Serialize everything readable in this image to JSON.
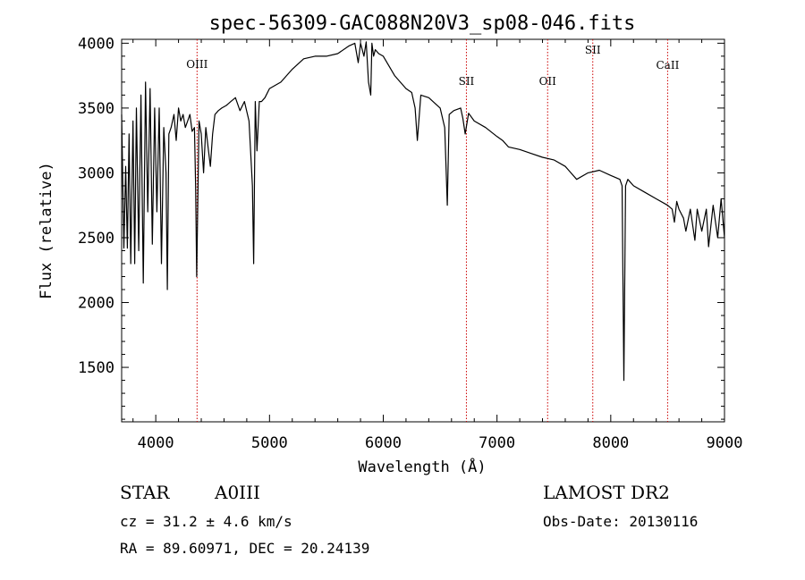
{
  "chart_data": {
    "type": "line",
    "title": "spec-56309-GAC088N20V3_sp08-046.fits",
    "xlabel": "Wavelength (Å)",
    "ylabel": "Flux (relative)",
    "xlim": [
      3700,
      9000
    ],
    "ylim": [
      1080,
      4030
    ],
    "xticks": [
      4000,
      5000,
      6000,
      7000,
      8000,
      9000
    ],
    "yticks": [
      1500,
      2000,
      2500,
      3000,
      3500,
      4000
    ],
    "reference_lines": [
      {
        "label": "OIII",
        "x": 4363
      },
      {
        "label": "SII",
        "x": 6731
      },
      {
        "label": "OII",
        "x": 7445
      },
      {
        "label": "SII",
        "x": 7842
      },
      {
        "label": "CaII",
        "x": 8500
      }
    ],
    "reference_line_color": "#cc0000",
    "series": [
      {
        "x": [
          3700,
          3720,
          3735,
          3750,
          3765,
          3780,
          3800,
          3815,
          3830,
          3850,
          3870,
          3890,
          3910,
          3930,
          3950,
          3970,
          3990,
          4010,
          4030,
          4050,
          4070,
          4090,
          4102,
          4115,
          4135,
          4160,
          4180,
          4200,
          4220,
          4240,
          4260,
          4280,
          4300,
          4320,
          4340,
          4350,
          4360,
          4380,
          4400,
          4420,
          4440,
          4460,
          4480,
          4500,
          4520,
          4550,
          4580,
          4620,
          4660,
          4700,
          4740,
          4780,
          4820,
          4850,
          4861,
          4875,
          4890,
          4910,
          4930,
          4960,
          5000,
          5100,
          5200,
          5300,
          5400,
          5500,
          5600,
          5700,
          5750,
          5780,
          5800,
          5830,
          5850,
          5870,
          5890,
          5900,
          5915,
          5930,
          5960,
          6000,
          6100,
          6200,
          6250,
          6280,
          6300,
          6330,
          6400,
          6500,
          6540,
          6563,
          6580,
          6620,
          6680,
          6700,
          6720,
          6750,
          6800,
          6900,
          7000,
          7050,
          7100,
          7200,
          7300,
          7400,
          7500,
          7600,
          7700,
          7800,
          7900,
          8000,
          8080,
          8100,
          8115,
          8130,
          8150,
          8200,
          8300,
          8400,
          8500,
          8540,
          8560,
          8580,
          8600,
          8640,
          8660,
          8700,
          8740,
          8760,
          8800,
          8840,
          8860,
          8900,
          8940,
          8970,
          9000
        ],
        "values": [
          3450,
          2420,
          3050,
          2420,
          3300,
          2300,
          3400,
          2300,
          3500,
          2400,
          3600,
          2150,
          3700,
          2700,
          3650,
          2450,
          3500,
          2700,
          3500,
          2300,
          3350,
          3000,
          2100,
          3300,
          3350,
          3450,
          3250,
          3500,
          3400,
          3450,
          3350,
          3400,
          3450,
          3320,
          3350,
          2900,
          2200,
          3400,
          3300,
          3000,
          3350,
          3200,
          3050,
          3300,
          3450,
          3480,
          3500,
          3520,
          3550,
          3580,
          3480,
          3550,
          3400,
          2900,
          2300,
          3550,
          3170,
          3550,
          3550,
          3580,
          3650,
          3700,
          3800,
          3880,
          3900,
          3900,
          3920,
          3980,
          4000,
          3850,
          4000,
          3900,
          4010,
          3700,
          3600,
          4000,
          3900,
          3950,
          3920,
          3900,
          3750,
          3650,
          3620,
          3500,
          3250,
          3600,
          3580,
          3500,
          3350,
          2750,
          3450,
          3480,
          3500,
          3420,
          3300,
          3460,
          3400,
          3350,
          3280,
          3250,
          3200,
          3180,
          3150,
          3120,
          3100,
          3050,
          2950,
          3000,
          3020,
          2980,
          2950,
          2900,
          1400,
          2900,
          2950,
          2900,
          2850,
          2800,
          2750,
          2720,
          2620,
          2780,
          2720,
          2650,
          2550,
          2720,
          2480,
          2720,
          2550,
          2720,
          2430,
          2750,
          2500,
          2800,
          2500
        ]
      }
    ]
  },
  "info": {
    "class_label": "STAR",
    "subclass": "A0III",
    "survey": "LAMOST DR2",
    "cz_line": "cz = 31.2 ± 4.6 km/s",
    "obs_date": "Obs-Date: 20130116",
    "coords": "RA =  89.60971, DEC =  20.24139"
  }
}
